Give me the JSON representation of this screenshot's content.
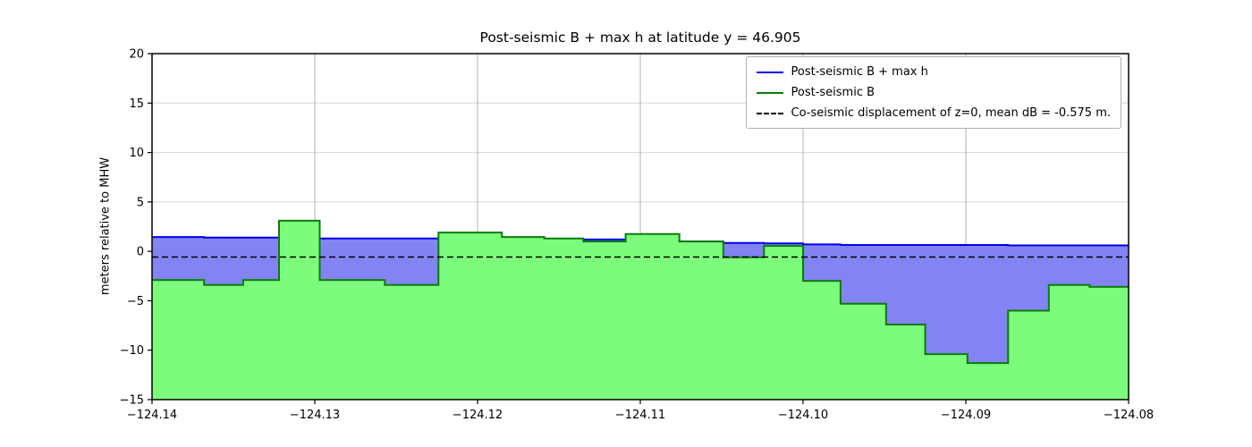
{
  "chart_data": {
    "type": "area",
    "title": "Post-seismic B + max h at latitude y = 46.905",
    "xlabel": "",
    "ylabel": "meters relative to MHW",
    "xlim": [
      -124.14,
      -124.08
    ],
    "ylim": [
      -15,
      20
    ],
    "xticks": [
      -124.14,
      -124.13,
      -124.12,
      -124.11,
      -124.1,
      -124.09,
      -124.08
    ],
    "xtick_labels": [
      "−124.14",
      "−124.13",
      "−124.12",
      "−124.11",
      "−124.10",
      "−124.09",
      "−124.08"
    ],
    "yticks": [
      -15,
      -10,
      -5,
      0,
      5,
      10,
      15,
      20
    ],
    "ytick_labels": [
      "−15",
      "−10",
      "−5",
      "0",
      "5",
      "10",
      "15",
      "20"
    ],
    "grid": true,
    "legend_position": "upper right",
    "mean_dB": -0.575,
    "step_edges": [
      -124.14,
      -124.1368,
      -124.1344,
      -124.1322,
      -124.1297,
      -124.1257,
      -124.1224,
      -124.1185,
      -124.1159,
      -124.1135,
      -124.1109,
      -124.1076,
      -124.1049,
      -124.1024,
      -124.1,
      -124.0977,
      -124.0949,
      -124.0925,
      -124.0899,
      -124.0874,
      -124.0849,
      -124.0824,
      -124.08
    ],
    "series": [
      {
        "name": "Post-seismic B + max h",
        "type": "step-line",
        "color": "#0000ee",
        "fill_color": "#8383f3",
        "line_style": "solid",
        "values": [
          1.45,
          1.4,
          1.4,
          1.35,
          1.3,
          1.3,
          1.3,
          1.3,
          1.25,
          1.2,
          1.1,
          1.0,
          0.85,
          0.8,
          0.7,
          0.65,
          0.65,
          0.65,
          0.65,
          0.6,
          0.6,
          0.6
        ]
      },
      {
        "name": "Post-seismic B",
        "type": "step-line",
        "color": "#0b7d0b",
        "fill_color": "#7dfb7d",
        "line_style": "solid",
        "values": [
          -2.9,
          -3.4,
          -2.9,
          3.1,
          -2.9,
          -3.4,
          1.9,
          1.45,
          1.3,
          1.0,
          1.75,
          1.0,
          -0.6,
          0.55,
          -3.0,
          -5.3,
          -7.4,
          -10.4,
          -11.3,
          -6.0,
          -3.4,
          -3.6
        ]
      },
      {
        "name": "Co-seismic displacement of z=0, mean dB = -0.575 m.",
        "type": "hline",
        "color": "#000000",
        "line_style": "dashed",
        "value": -0.575
      }
    ],
    "grid_color_vertical": "#b0b0b0",
    "grid_color_horizontal": "#d6d6d6"
  }
}
